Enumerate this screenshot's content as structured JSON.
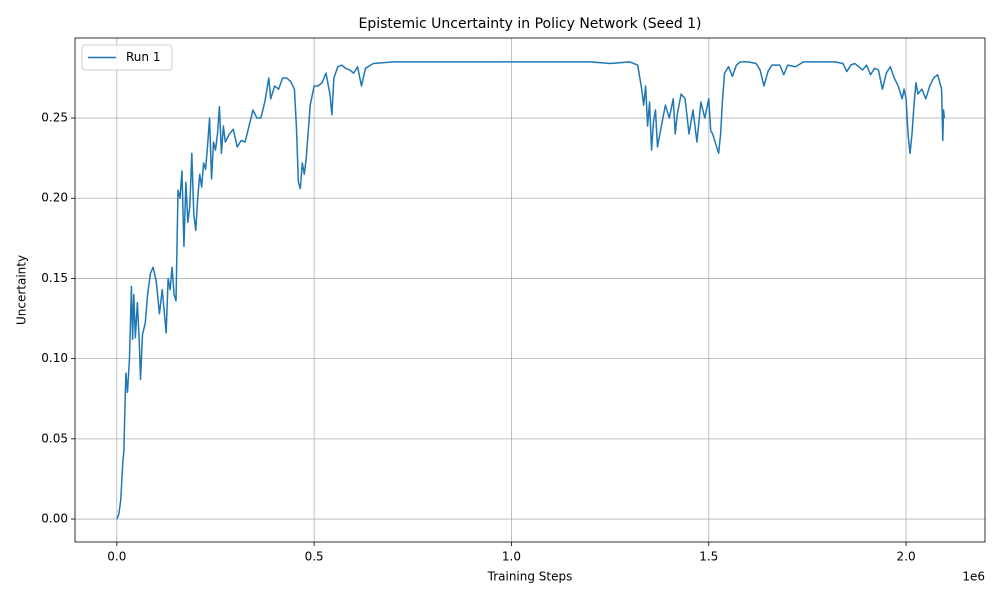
{
  "chart_data": {
    "type": "line",
    "title": "Epistemic Uncertainty in Policy Network (Seed 1)",
    "x_label": "Training Steps",
    "y_label": "Uncertainty",
    "x_offset_label": "1e6",
    "xlim": [
      -106000,
      2200000
    ],
    "ylim": [
      -0.0143,
      0.2999
    ],
    "xticks": [
      {
        "value": 0,
        "label": "0.0"
      },
      {
        "value": 500000,
        "label": "0.5"
      },
      {
        "value": 1000000,
        "label": "1.0"
      },
      {
        "value": 1500000,
        "label": "1.5"
      },
      {
        "value": 2000000,
        "label": "2.0"
      }
    ],
    "yticks": [
      {
        "value": 0,
        "label": "0.00"
      },
      {
        "value": 0.05,
        "label": "0.05"
      },
      {
        "value": 0.1,
        "label": "0.10"
      },
      {
        "value": 0.15,
        "label": "0.15"
      },
      {
        "value": 0.2,
        "label": "0.20"
      },
      {
        "value": 0.25,
        "label": "0.25"
      }
    ],
    "grid": true,
    "legend": "upper-left",
    "x": [
      0,
      5000,
      10000,
      15000,
      18000,
      20000,
      23000,
      27000,
      32000,
      37000,
      40000,
      43000,
      47000,
      52000,
      57000,
      60000,
      65000,
      72000,
      78000,
      85000,
      92000,
      100000,
      108000,
      115000,
      120000,
      125000,
      130000,
      135000,
      140000,
      145000,
      150000,
      155000,
      160000,
      165000,
      170000,
      175000,
      180000,
      185000,
      190000,
      195000,
      200000,
      205000,
      210000,
      215000,
      220000,
      225000,
      230000,
      235000,
      240000,
      245000,
      250000,
      255000,
      260000,
      265000,
      270000,
      275000,
      285000,
      295000,
      305000,
      315000,
      325000,
      335000,
      345000,
      355000,
      365000,
      375000,
      385000,
      390000,
      400000,
      410000,
      420000,
      430000,
      440000,
      450000,
      455000,
      460000,
      465000,
      470000,
      475000,
      480000,
      490000,
      500000,
      510000,
      520000,
      530000,
      540000,
      545000,
      550000,
      560000,
      570000,
      580000,
      590000,
      600000,
      610000,
      620000,
      630000,
      650000,
      700000,
      800000,
      900000,
      1000000,
      1100000,
      1200000,
      1250000,
      1300000,
      1320000,
      1330000,
      1335000,
      1340000,
      1345000,
      1350000,
      1355000,
      1360000,
      1365000,
      1370000,
      1380000,
      1390000,
      1400000,
      1410000,
      1415000,
      1420000,
      1430000,
      1440000,
      1450000,
      1460000,
      1470000,
      1480000,
      1490000,
      1500000,
      1505000,
      1510000,
      1520000,
      1525000,
      1530000,
      1535000,
      1540000,
      1550000,
      1560000,
      1570000,
      1580000,
      1600000,
      1620000,
      1630000,
      1640000,
      1650000,
      1660000,
      1680000,
      1690000,
      1700000,
      1720000,
      1740000,
      1760000,
      1780000,
      1800000,
      1820000,
      1840000,
      1850000,
      1860000,
      1870000,
      1880000,
      1890000,
      1900000,
      1910000,
      1920000,
      1930000,
      1940000,
      1950000,
      1960000,
      1970000,
      1980000,
      1990000,
      1995000,
      2000000,
      2005000,
      2010000,
      2015000,
      2020000,
      2025000,
      2030000,
      2040000,
      2050000,
      2060000,
      2070000,
      2080000,
      2090000,
      2093000,
      2095000,
      2097000
    ],
    "series": [
      {
        "name": "Run 1",
        "color": "#1f77b4",
        "values": [
          0.0,
          0.003,
          0.012,
          0.035,
          0.043,
          0.065,
          0.091,
          0.079,
          0.1,
          0.145,
          0.112,
          0.14,
          0.113,
          0.135,
          0.11,
          0.087,
          0.115,
          0.122,
          0.14,
          0.153,
          0.157,
          0.148,
          0.128,
          0.143,
          0.13,
          0.116,
          0.15,
          0.143,
          0.157,
          0.14,
          0.136,
          0.205,
          0.2,
          0.217,
          0.17,
          0.21,
          0.185,
          0.195,
          0.228,
          0.19,
          0.18,
          0.2,
          0.215,
          0.207,
          0.222,
          0.218,
          0.233,
          0.25,
          0.212,
          0.235,
          0.23,
          0.24,
          0.257,
          0.228,
          0.245,
          0.235,
          0.24,
          0.243,
          0.232,
          0.236,
          0.235,
          0.245,
          0.255,
          0.25,
          0.25,
          0.26,
          0.275,
          0.262,
          0.27,
          0.268,
          0.275,
          0.275,
          0.273,
          0.268,
          0.245,
          0.21,
          0.206,
          0.222,
          0.215,
          0.225,
          0.258,
          0.27,
          0.27,
          0.272,
          0.278,
          0.265,
          0.252,
          0.275,
          0.282,
          0.283,
          0.281,
          0.28,
          0.278,
          0.282,
          0.27,
          0.281,
          0.284,
          0.285,
          0.285,
          0.285,
          0.285,
          0.285,
          0.285,
          0.284,
          0.285,
          0.283,
          0.268,
          0.258,
          0.27,
          0.245,
          0.26,
          0.23,
          0.248,
          0.255,
          0.232,
          0.245,
          0.258,
          0.25,
          0.262,
          0.24,
          0.252,
          0.265,
          0.262,
          0.24,
          0.255,
          0.235,
          0.26,
          0.25,
          0.262,
          0.242,
          0.24,
          0.232,
          0.228,
          0.24,
          0.262,
          0.278,
          0.282,
          0.276,
          0.283,
          0.285,
          0.285,
          0.284,
          0.28,
          0.27,
          0.279,
          0.283,
          0.283,
          0.277,
          0.283,
          0.282,
          0.285,
          0.285,
          0.285,
          0.285,
          0.285,
          0.284,
          0.279,
          0.283,
          0.284,
          0.282,
          0.28,
          0.283,
          0.277,
          0.281,
          0.28,
          0.268,
          0.278,
          0.282,
          0.275,
          0.27,
          0.262,
          0.268,
          0.262,
          0.24,
          0.228,
          0.24,
          0.258,
          0.272,
          0.265,
          0.268,
          0.262,
          0.27,
          0.275,
          0.277,
          0.268,
          0.236,
          0.255,
          0.25
        ]
      }
    ]
  }
}
